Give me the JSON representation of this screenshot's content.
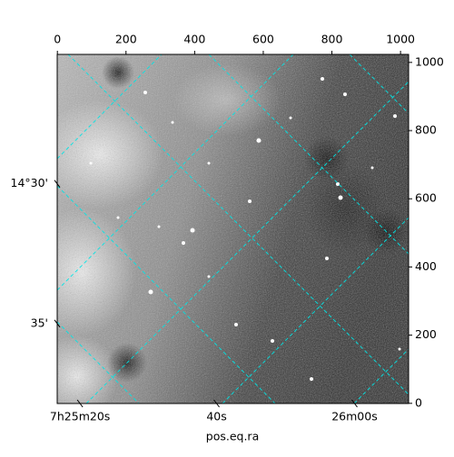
{
  "chart_data": {
    "type": "image",
    "xlabel": "pos.eq.ra",
    "xlim": [
      -0.5,
      1023.5
    ],
    "ylim": [
      -0.5,
      1023.5
    ],
    "xticks": [
      0,
      200,
      400,
      600,
      800,
      1000
    ],
    "yticks": [
      0,
      200,
      400,
      600,
      800,
      1000
    ],
    "ra_ticks": [
      {
        "value": 66,
        "label": "7h25m20s"
      },
      {
        "value": 464,
        "label": "40s"
      },
      {
        "value": 866,
        "label": "26m00s"
      }
    ],
    "dec_ticks": [
      {
        "value": 644,
        "label": "14°30'"
      },
      {
        "value": 234,
        "label": "35'"
      }
    ],
    "grid_color": "#00e5e5"
  }
}
